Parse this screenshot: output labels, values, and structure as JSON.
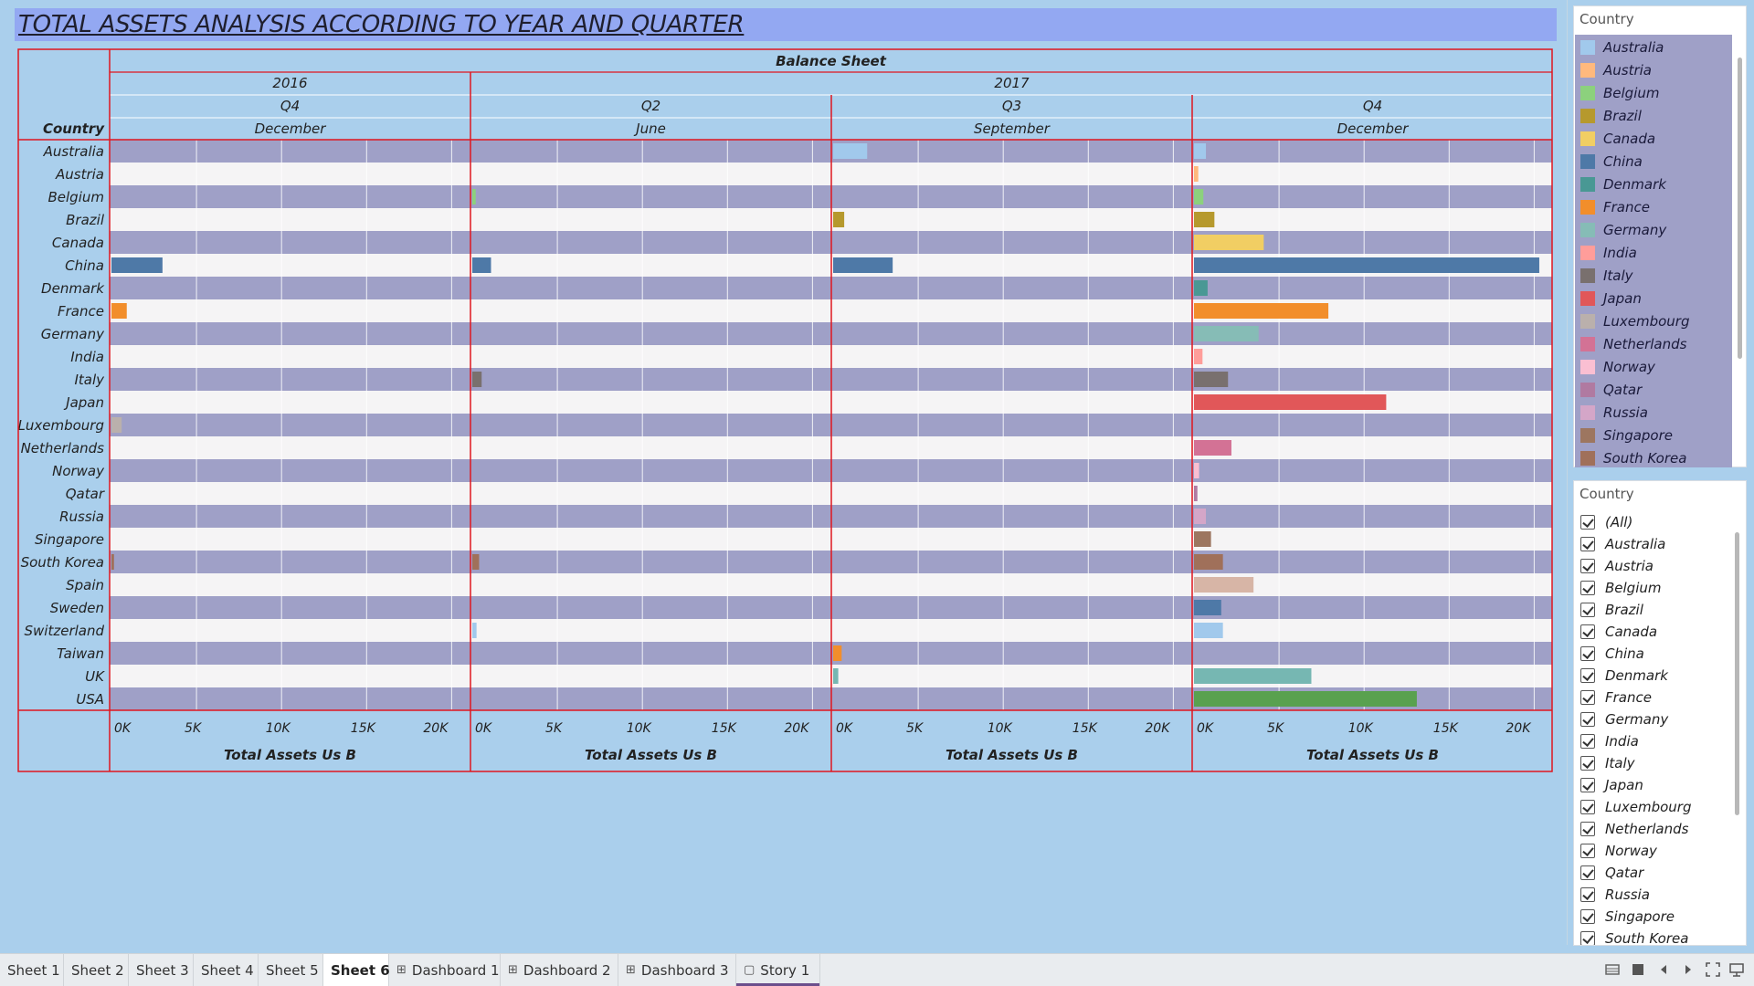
{
  "title": "TOTAL ASSETS ANALYSIS ACCORDING TO YEAR AND QUARTER",
  "header": {
    "top": "Balance Sheet",
    "row_header": "Country",
    "years": [
      {
        "label": "2016",
        "span": 1
      },
      {
        "label": "2017",
        "span": 3
      }
    ],
    "columns": [
      {
        "quarter": "Q4",
        "month": "December"
      },
      {
        "quarter": "Q2",
        "month": "June"
      },
      {
        "quarter": "Q3",
        "month": "September"
      },
      {
        "quarter": "Q4",
        "month": "December"
      }
    ],
    "axis_label": "Total Assets Us B"
  },
  "colors": {
    "Australia": "#a1c9ec",
    "Austria": "#ffb97d",
    "Belgium": "#8cd17d",
    "Brazil": "#b6992d",
    "Canada": "#f1ce63",
    "China": "#4e79a7",
    "Denmark": "#499894",
    "France": "#f28e2b",
    "Germany": "#86bcb6",
    "India": "#ff9d9a",
    "Italy": "#79706e",
    "Japan": "#e15759",
    "Luxembourg": "#bab0ac",
    "Netherlands": "#d37295",
    "Norway": "#fabfd2",
    "Qatar": "#b07aa1",
    "Russia": "#d4a6c8",
    "Singapore": "#9d7660",
    "South Korea": "#a0705a",
    "Spain": "#d7b5a6",
    "Sweden": "#4e79a7",
    "Switzerland": "#a1c9ec",
    "Taiwan": "#f28e2b",
    "UK": "#76b7b2",
    "USA": "#59a14f"
  },
  "chart_data": {
    "type": "bar",
    "orientation": "horizontal",
    "categories": [
      "Australia",
      "Austria",
      "Belgium",
      "Brazil",
      "Canada",
      "China",
      "Denmark",
      "France",
      "Germany",
      "India",
      "Italy",
      "Japan",
      "Luxembourg",
      "Netherlands",
      "Norway",
      "Qatar",
      "Russia",
      "Singapore",
      "South Korea",
      "Spain",
      "Sweden",
      "Switzerland",
      "Taiwan",
      "UK",
      "USA"
    ],
    "xlabel": "Total Assets Us B",
    "xlim": [
      0,
      21000
    ],
    "ticks": [
      "0K",
      "5K",
      "10K",
      "15K",
      "20K"
    ],
    "grid": true,
    "series": [
      {
        "name": "2016 Q4 December",
        "values": [
          0,
          0,
          0,
          0,
          0,
          3000,
          0,
          900,
          0,
          0,
          0,
          0,
          600,
          0,
          0,
          0,
          0,
          0,
          150,
          0,
          0,
          0,
          0,
          0,
          0
        ]
      },
      {
        "name": "2017 Q2 June",
        "values": [
          0,
          0,
          200,
          0,
          0,
          1100,
          0,
          0,
          0,
          0,
          550,
          0,
          0,
          0,
          0,
          0,
          0,
          0,
          400,
          0,
          0,
          250,
          0,
          0,
          0
        ]
      },
      {
        "name": "2017 Q3 September",
        "values": [
          2000,
          0,
          0,
          650,
          0,
          3500,
          0,
          0,
          0,
          0,
          0,
          0,
          0,
          0,
          0,
          0,
          0,
          0,
          0,
          0,
          0,
          0,
          500,
          300,
          0
        ]
      },
      {
        "name": "2017 Q4 December",
        "values": [
          700,
          250,
          550,
          1200,
          4100,
          20300,
          800,
          7900,
          3800,
          500,
          2000,
          11300,
          0,
          2200,
          300,
          200,
          700,
          1000,
          1700,
          3500,
          1600,
          1700,
          0,
          6900,
          13100
        ]
      }
    ]
  },
  "legend": {
    "title": "Country",
    "items": [
      "Australia",
      "Austria",
      "Belgium",
      "Brazil",
      "Canada",
      "China",
      "Denmark",
      "France",
      "Germany",
      "India",
      "Italy",
      "Japan",
      "Luxembourg",
      "Netherlands",
      "Norway",
      "Qatar",
      "Russia",
      "Singapore",
      "South Korea"
    ]
  },
  "filter": {
    "title": "Country",
    "items": [
      "(All)",
      "Australia",
      "Austria",
      "Belgium",
      "Brazil",
      "Canada",
      "China",
      "Denmark",
      "France",
      "Germany",
      "India",
      "Italy",
      "Japan",
      "Luxembourg",
      "Netherlands",
      "Norway",
      "Qatar",
      "Russia",
      "Singapore",
      "South Korea"
    ]
  },
  "tabs": [
    {
      "label": "Sheet 1",
      "icon": ""
    },
    {
      "label": "Sheet 2",
      "icon": ""
    },
    {
      "label": "Sheet 3",
      "icon": ""
    },
    {
      "label": "Sheet 4",
      "icon": ""
    },
    {
      "label": "Sheet 5",
      "icon": ""
    },
    {
      "label": "Sheet 6",
      "icon": "",
      "active": true
    },
    {
      "label": "Dashboard 1",
      "icon": "dashboard-icon"
    },
    {
      "label": "Dashboard 2",
      "icon": "dashboard-icon"
    },
    {
      "label": "Dashboard 3",
      "icon": "dashboard-icon"
    },
    {
      "label": "Story 1",
      "icon": "story-icon"
    }
  ]
}
